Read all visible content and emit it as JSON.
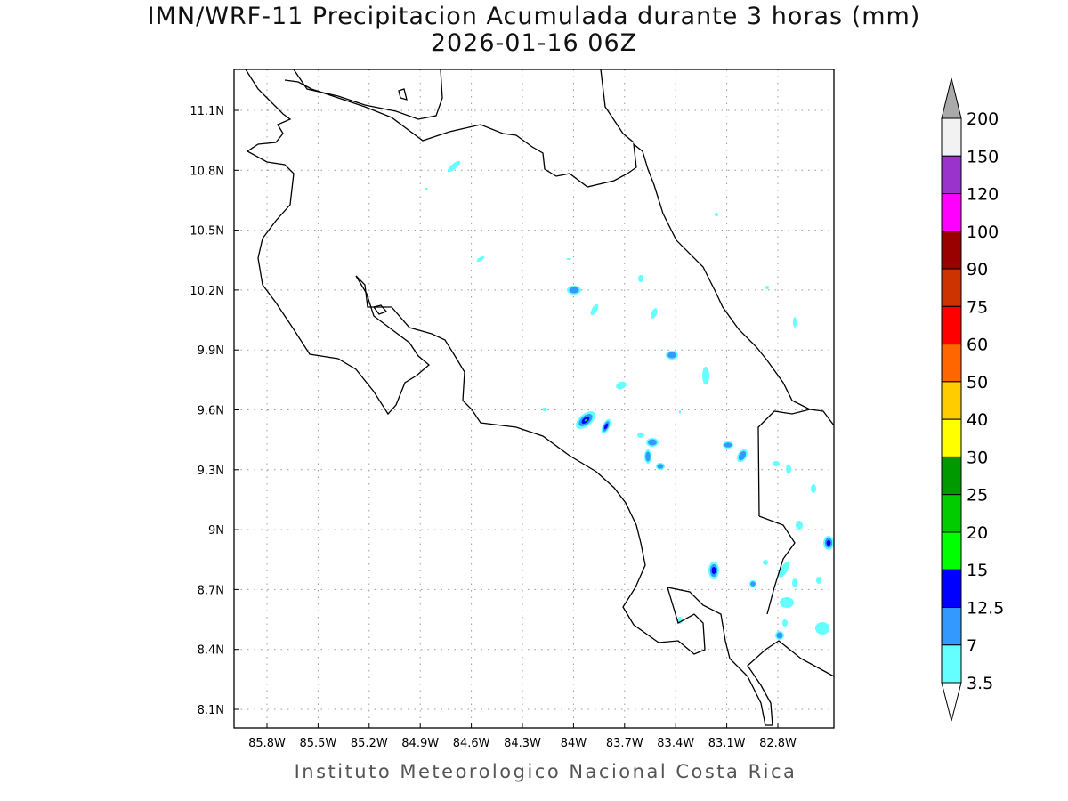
{
  "title_line1": "IMN/WRF-11 Precipitacion Acumulada durante 3 horas (mm)",
  "title_line2": "2026-01-16 06Z",
  "footer": "Instituto Meteorologico Nacional Costa Rica",
  "lon_ticks": [
    "85.8W",
    "85.5W",
    "85.2W",
    "84.9W",
    "84.6W",
    "84.3W",
    "84W",
    "83.7W",
    "83.4W",
    "83.1W",
    "82.8W"
  ],
  "lat_ticks": [
    "11.1N",
    "10.8N",
    "10.5N",
    "10.2N",
    "9.9N",
    "9.6N",
    "9.3N",
    "9N",
    "8.7N",
    "8.4N",
    "8.1N"
  ],
  "colorbar": {
    "levels": [
      "3.5",
      "7",
      "12.5",
      "15",
      "20",
      "25",
      "30",
      "40",
      "50",
      "60",
      "75",
      "90",
      "100",
      "120",
      "150",
      "200"
    ],
    "colors": [
      "#66ffff",
      "#3399ff",
      "#0000ff",
      "#00ff00",
      "#00cc00",
      "#009900",
      "#ffff00",
      "#ffcc00",
      "#ff6600",
      "#ff0000",
      "#cc3300",
      "#990000",
      "#ff00ff",
      "#9933cc",
      "#f2f2f2"
    ],
    "over_color": "#aaaaaa",
    "under_color": "#ffffff"
  }
}
